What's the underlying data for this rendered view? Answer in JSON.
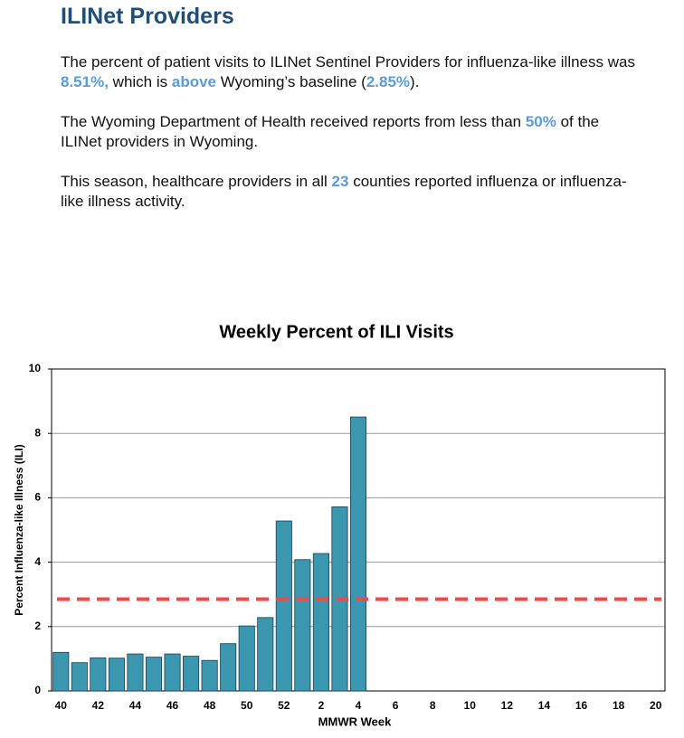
{
  "header": {
    "title": "ILINet Providers"
  },
  "paragraphs": [
    [
      "The percent of patient visits to ILINet Sentinel Providers for influenza-like illness was ",
      "8.51%,",
      " which is ",
      "above",
      " Wyoming’s baseline (",
      "2.85%",
      ")."
    ],
    [
      "The Wyoming Department of Health received reports from less than ",
      "50%",
      " of the ILINet providers in Wyoming."
    ],
    [
      "This season, healthcare providers in all ",
      "23",
      " counties reported influenza or influenza-like illness activity."
    ]
  ],
  "chart_data": {
    "type": "bar",
    "title": "Weekly Percent of ILI Visits",
    "x_label": "MMWR Week",
    "y_label": "Percent Influenza-like Illness (ILI)",
    "categories": [
      "40",
      null,
      "42",
      null,
      "44",
      null,
      "46",
      null,
      "48",
      null,
      "50",
      null,
      "52",
      null,
      "2",
      null,
      "4",
      null,
      "6",
      null,
      "8",
      null,
      "10",
      null,
      "12",
      null,
      "14",
      null,
      "16",
      null,
      "18",
      null,
      "20"
    ],
    "values": [
      1.2,
      0.88,
      1.03,
      1.02,
      1.15,
      1.05,
      1.15,
      1.08,
      0.95,
      1.47,
      2.02,
      2.28,
      5.28,
      4.08,
      4.27,
      5.72,
      8.51,
      null,
      null,
      null,
      null,
      null,
      null,
      null,
      null,
      null,
      null,
      null,
      null,
      null,
      null,
      null,
      null
    ],
    "color": "#3b96b0",
    "baseline": 2.85,
    "baseline_color": "#f0494a",
    "ylim": [
      0,
      10
    ],
    "yticks": [
      0,
      2,
      4,
      6,
      8,
      10
    ],
    "grid": true
  }
}
